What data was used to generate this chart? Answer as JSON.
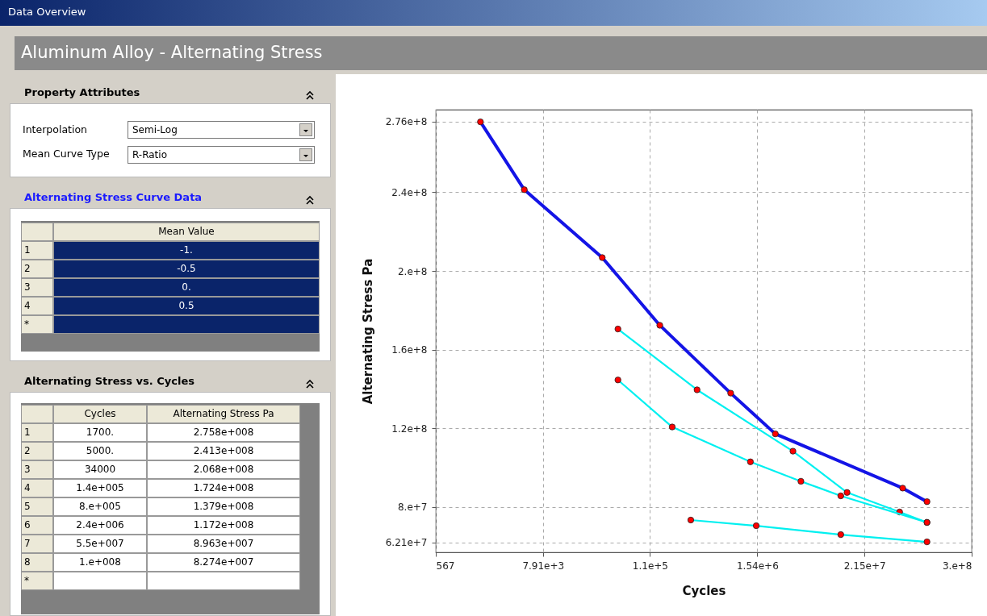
{
  "chart_data": {
    "type": "line",
    "title": "Aluminum Alloy - Alternating Stress",
    "xlabel": "Cycles",
    "ylabel": "Alternating Stress Pa",
    "log": "x",
    "grid": true,
    "marker": "circle",
    "line_style": "solid",
    "xlim": [
      567,
      300000000
    ],
    "xticks": [
      567,
      {
        "value": 7910,
        "label": "7.91e+3"
      },
      {
        "value": 110000,
        "label": "1.1e+5"
      },
      {
        "value": 1540000,
        "label": "1.54e+6"
      },
      {
        "value": 21500000,
        "label": "2.15e+7"
      },
      {
        "value": 300000000,
        "label": "3.e+8"
      }
    ],
    "ylim": [
      57000000,
      282000000
    ],
    "yticks": [
      {
        "value": 62100000,
        "label": "6.21e+7"
      },
      {
        "value": 80000000,
        "label": "8.e+7"
      },
      {
        "value": 120000000,
        "label": "1.2e+8"
      },
      {
        "value": 160000000,
        "label": "1.6e+8"
      },
      {
        "value": 200000000,
        "label": "2.e+8"
      },
      {
        "value": 240000000,
        "label": "2.4e+8"
      },
      {
        "value": 276000000,
        "label": "2.76e+8"
      }
    ],
    "series": [
      {
        "color": "#1414e6",
        "x": [
          1700,
          5000,
          34000,
          140000,
          800000,
          2400000,
          55000000,
          100000000
        ],
        "values": [
          275800000,
          241300000,
          206800000,
          172400000,
          137900000,
          117200000,
          89630000,
          82740000
        ]
      },
      {
        "color": "#00f0f0",
        "x": [
          50000,
          350000,
          3700000,
          14000000,
          51000000,
          100000000
        ],
        "values": [
          170500000,
          139600000,
          108400000,
          87400000,
          77500000,
          72200000
        ]
      },
      {
        "color": "#00f0f0",
        "x": [
          50000,
          190000,
          1300000,
          4500000,
          12000000,
          100000000
        ],
        "values": [
          144600000,
          120700000,
          103000000,
          93100000,
          85700000,
          72200000
        ]
      },
      {
        "color": "#00f0f0",
        "x": [
          300000,
          1500000,
          12000000,
          100000000
        ],
        "values": [
          73400000,
          70500000,
          66000000,
          62300000
        ]
      }
    ],
    "annotations": [
      "Data Overview",
      "Property Attributes",
      "Interpolation",
      "Semi-Log",
      "Mean Curve Type",
      "R-Ratio",
      "Alternating Stress Curve Data",
      "Mean Value",
      "1",
      "-1.",
      "2",
      "-0.5",
      "3",
      "0.",
      "4",
      "0.5",
      "*",
      "Alternating Stress vs. Cycles",
      "Cycles",
      "Alternating Stress Pa",
      "1",
      "1700.",
      "2.758e+008",
      "2",
      "5000.",
      "2.413e+008",
      "3",
      "34000",
      "2.068e+008",
      "4",
      "1.4e+005",
      "1.724e+008",
      "5",
      "8.e+005",
      "1.379e+008",
      "6",
      "2.4e+006",
      "1.172e+008",
      "7",
      "5.5e+007",
      "8.963e+007",
      "8",
      "1.e+008",
      "8.274e+007",
      "*"
    ]
  }
}
